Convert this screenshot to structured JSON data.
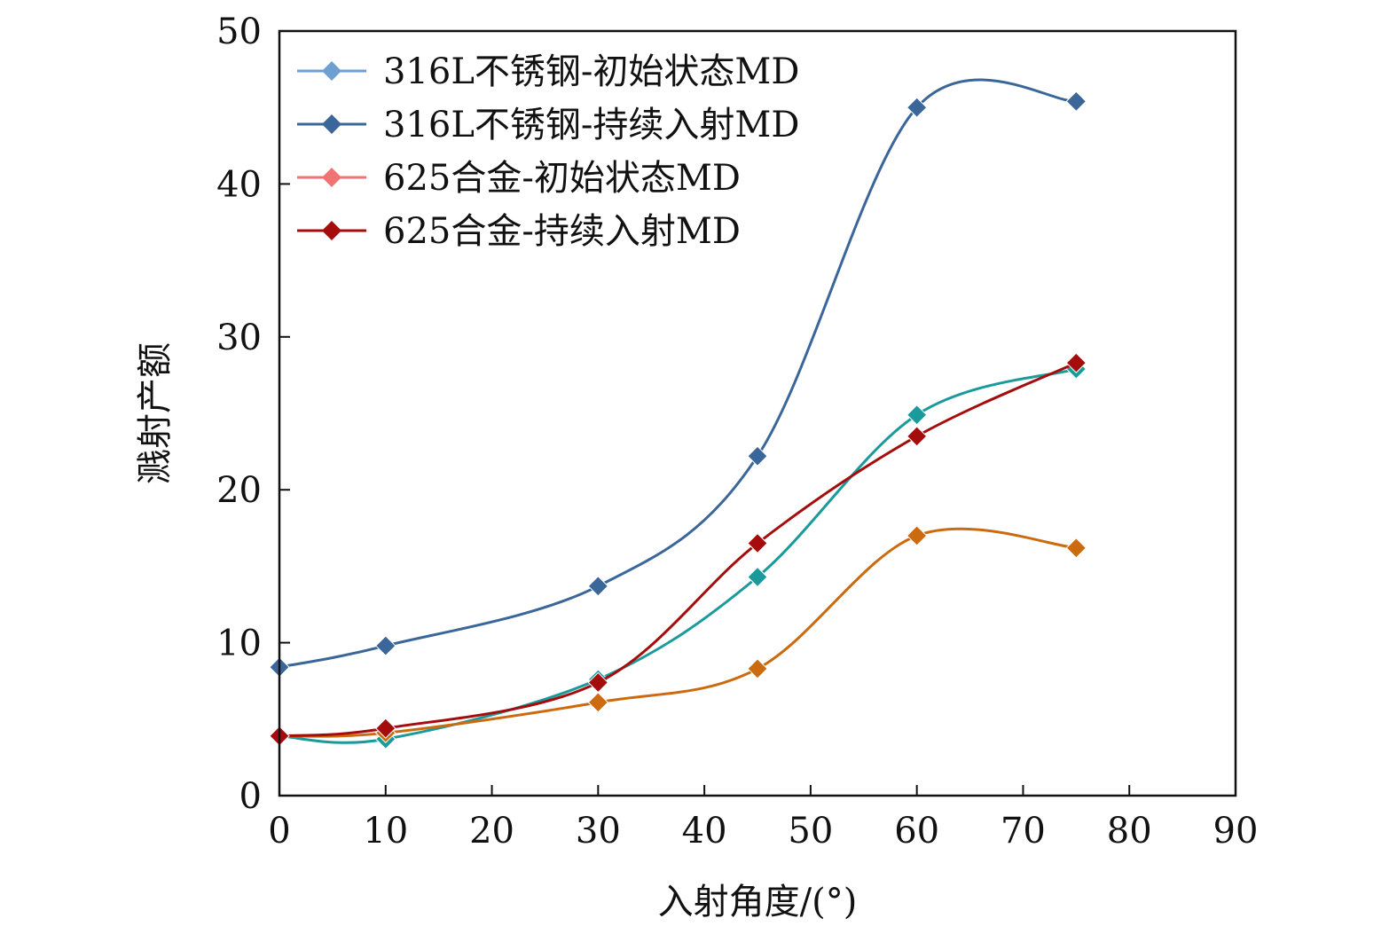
{
  "chart_data": {
    "type": "line",
    "title": "",
    "xlabel": "入射角度/(°)",
    "ylabel": "溅射产额",
    "xlim": [
      0,
      90
    ],
    "ylim": [
      0,
      50
    ],
    "xticks": [
      "0",
      "10",
      "20",
      "30",
      "40",
      "50",
      "60",
      "70",
      "80",
      "90"
    ],
    "yticks": [
      "0",
      "10",
      "20",
      "30",
      "40",
      "50"
    ],
    "legend_position": "top-left",
    "grid": false,
    "marker": "diamond",
    "curve": "smooth",
    "legend": [
      {
        "name": "316L不锈钢-初始状态MD",
        "color": "#6e9fd0"
      },
      {
        "name": "316L不锈钢-持续入射MD",
        "color": "#3a6699"
      },
      {
        "name": "625合金-初始状态MD",
        "color": "#f07474"
      },
      {
        "name": "625合金-持续入射MD",
        "color": "#a50d0d"
      }
    ],
    "series": [
      {
        "color": "#3a6699",
        "x": [
          0,
          10,
          30,
          45,
          60,
          75
        ],
        "y": [
          8.4,
          9.8,
          13.7,
          22.2,
          45.0,
          45.4
        ]
      },
      {
        "color": "#1a9a9a",
        "x": [
          0,
          10,
          30,
          45,
          60,
          75
        ],
        "y": [
          3.9,
          3.7,
          7.6,
          14.3,
          24.9,
          27.9
        ]
      },
      {
        "color": "#cc6a10",
        "x": [
          0,
          10,
          30,
          45,
          60,
          75
        ],
        "y": [
          3.9,
          4.1,
          6.1,
          8.3,
          17.0,
          16.2
        ]
      },
      {
        "color": "#a50d0d",
        "x": [
          0,
          10,
          30,
          45,
          60,
          75
        ],
        "y": [
          3.9,
          4.4,
          7.4,
          16.5,
          23.5,
          28.3
        ]
      }
    ]
  }
}
